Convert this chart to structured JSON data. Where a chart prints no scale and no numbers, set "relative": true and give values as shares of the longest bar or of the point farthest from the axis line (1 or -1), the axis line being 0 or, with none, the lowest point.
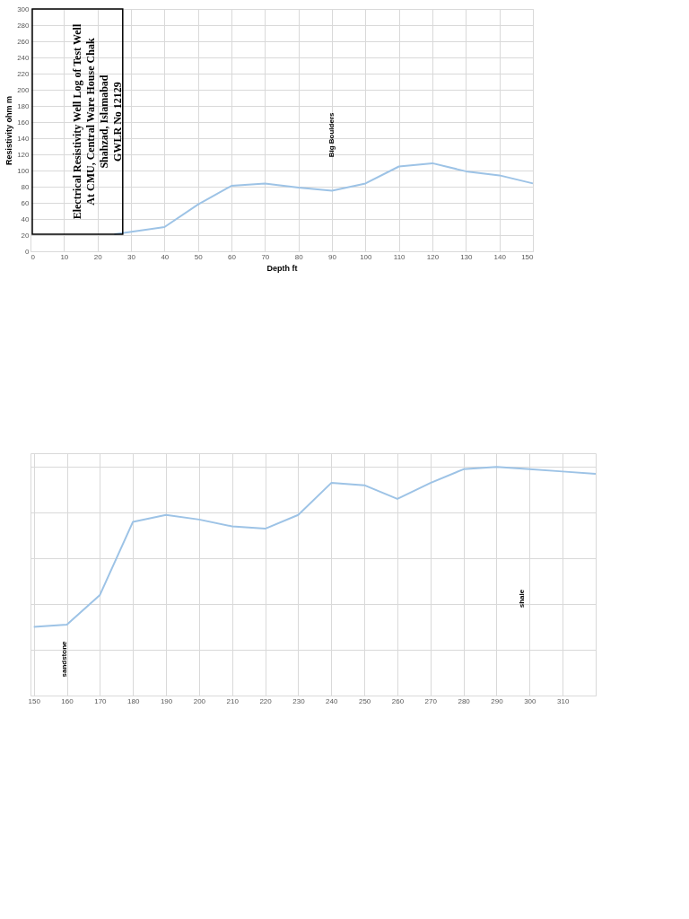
{
  "chart_data": [
    {
      "type": "line",
      "title": "Electrical Resistivity Well Log of Test Well\nAt CMU, Central Ware House Chak\nShahzad, Islamabad\nGWLR No  12129",
      "xlabel": "Depth ft",
      "ylabel": "Resistivity ohm m",
      "x": [
        25,
        40,
        50,
        60,
        70,
        80,
        90,
        100,
        110,
        120,
        130,
        140,
        150
      ],
      "series": [
        {
          "color": "#9dc3e6",
          "values": [
            21,
            30,
            58,
            81,
            84,
            79,
            75,
            84,
            105,
            109,
            99,
            94,
            84
          ]
        }
      ],
      "xlim": [
        0,
        150
      ],
      "xticks": [
        0,
        10,
        20,
        30,
        40,
        50,
        60,
        70,
        80,
        90,
        100,
        110,
        120,
        130,
        140,
        150
      ],
      "ylim": [
        0,
        300
      ],
      "yticks": [
        0,
        20,
        40,
        60,
        80,
        100,
        120,
        140,
        160,
        180,
        200,
        220,
        240,
        260,
        280,
        300
      ],
      "grid": true,
      "line_style": "solid",
      "annotations": [
        "Big Boulders"
      ]
    },
    {
      "type": "line",
      "relative": true,
      "x": [
        150,
        160,
        170,
        180,
        190,
        200,
        210,
        220,
        230,
        240,
        250,
        260,
        270,
        280,
        290,
        300,
        310,
        320
      ],
      "series": [
        {
          "color": "#9dc3e6",
          "values": [
            0.3,
            0.31,
            0.44,
            0.76,
            0.79,
            0.77,
            0.74,
            0.73,
            0.79,
            0.93,
            0.92,
            0.86,
            0.93,
            0.99,
            1,
            0.99,
            0.98,
            0.97
          ]
        }
      ],
      "xlim": [
        149,
        320
      ],
      "xticks": [
        150,
        160,
        170,
        180,
        190,
        200,
        210,
        220,
        230,
        240,
        250,
        260,
        270,
        280,
        290,
        300,
        310
      ],
      "grid": true,
      "line_style": "solid",
      "annotations": [
        "sandstone",
        "shale"
      ]
    }
  ]
}
